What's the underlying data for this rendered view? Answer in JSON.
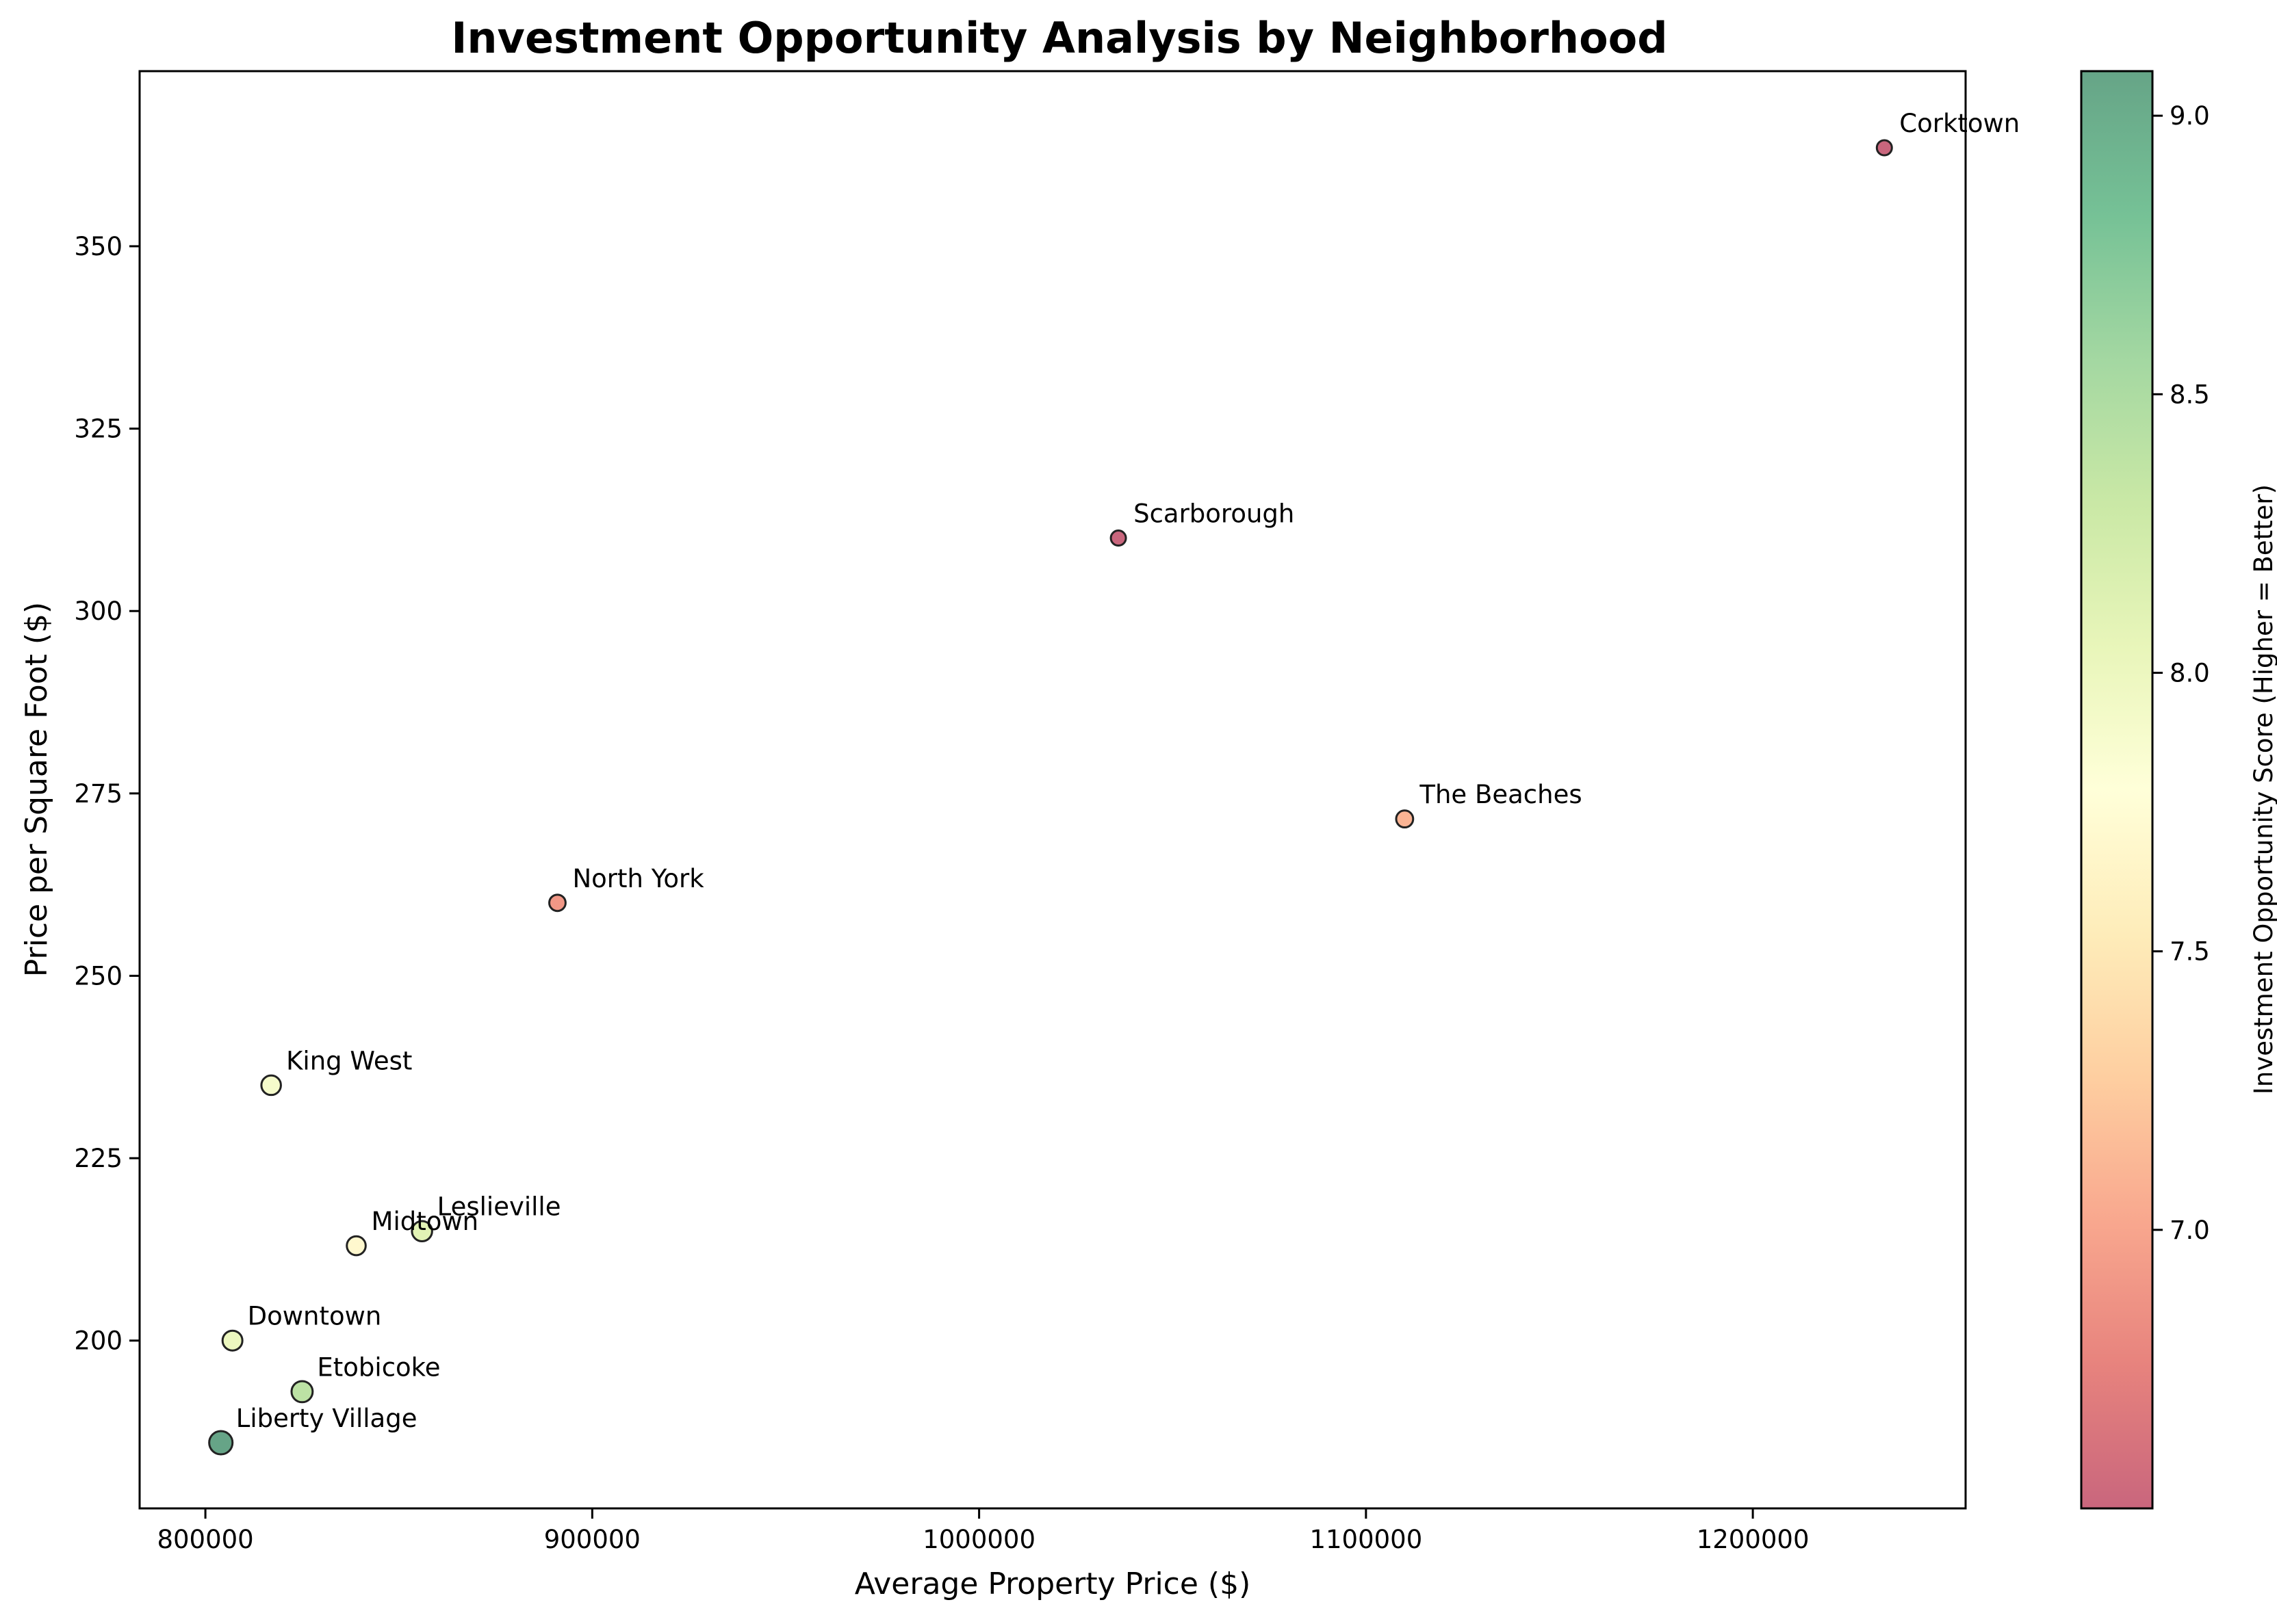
{
  "chart_data": {
    "type": "scatter",
    "title": "Investment Opportunity Analysis by Neighborhood",
    "xlabel": "Average Property Price ($)",
    "ylabel": "Price per Square Foot ($)",
    "colorbar_label": "Investment Opportunity Score (Higher = Better)",
    "xlim": [
      783000,
      1255000
    ],
    "ylim": [
      177,
      374
    ],
    "color_range": [
      6.5,
      9.08
    ],
    "colormap": "RdYlGn",
    "grid": false,
    "legend": "none",
    "x_ticks": [
      800000,
      900000,
      1000000,
      1100000,
      1200000
    ],
    "y_ticks": [
      200,
      225,
      250,
      275,
      300,
      325,
      350
    ],
    "colorbar_ticks": [
      7.0,
      7.5,
      8.0,
      8.5,
      9.0
    ],
    "x_tick_labels": [
      "800000",
      "900000",
      "1000000",
      "1100000",
      "1200000"
    ],
    "y_tick_labels": [
      "200",
      "225",
      "250",
      "275",
      "300",
      "325",
      "350"
    ],
    "colorbar_tick_labels": [
      "7.0",
      "7.5",
      "8.0",
      "8.5",
      "9.0"
    ],
    "points": [
      {
        "label": "Corktown",
        "x": 1234000,
        "y": 363.5,
        "score": 6.5
      },
      {
        "label": "Scarborough",
        "x": 1036000,
        "y": 310,
        "score": 6.5
      },
      {
        "label": "The Beaches",
        "x": 1110000,
        "y": 271.5,
        "score": 7.1
      },
      {
        "label": "North York",
        "x": 891000,
        "y": 260,
        "score": 6.9
      },
      {
        "label": "King West",
        "x": 817000,
        "y": 235,
        "score": 7.9
      },
      {
        "label": "Midtown",
        "x": 839000,
        "y": 213,
        "score": 7.7
      },
      {
        "label": "Leslieville",
        "x": 856000,
        "y": 215,
        "score": 8.1
      },
      {
        "label": "Downtown",
        "x": 807000,
        "y": 200,
        "score": 8.0
      },
      {
        "label": "Etobicoke",
        "x": 825000,
        "y": 193,
        "score": 8.4
      },
      {
        "label": "Liberty Village",
        "x": 804000,
        "y": 186,
        "score": 9.1
      }
    ]
  }
}
